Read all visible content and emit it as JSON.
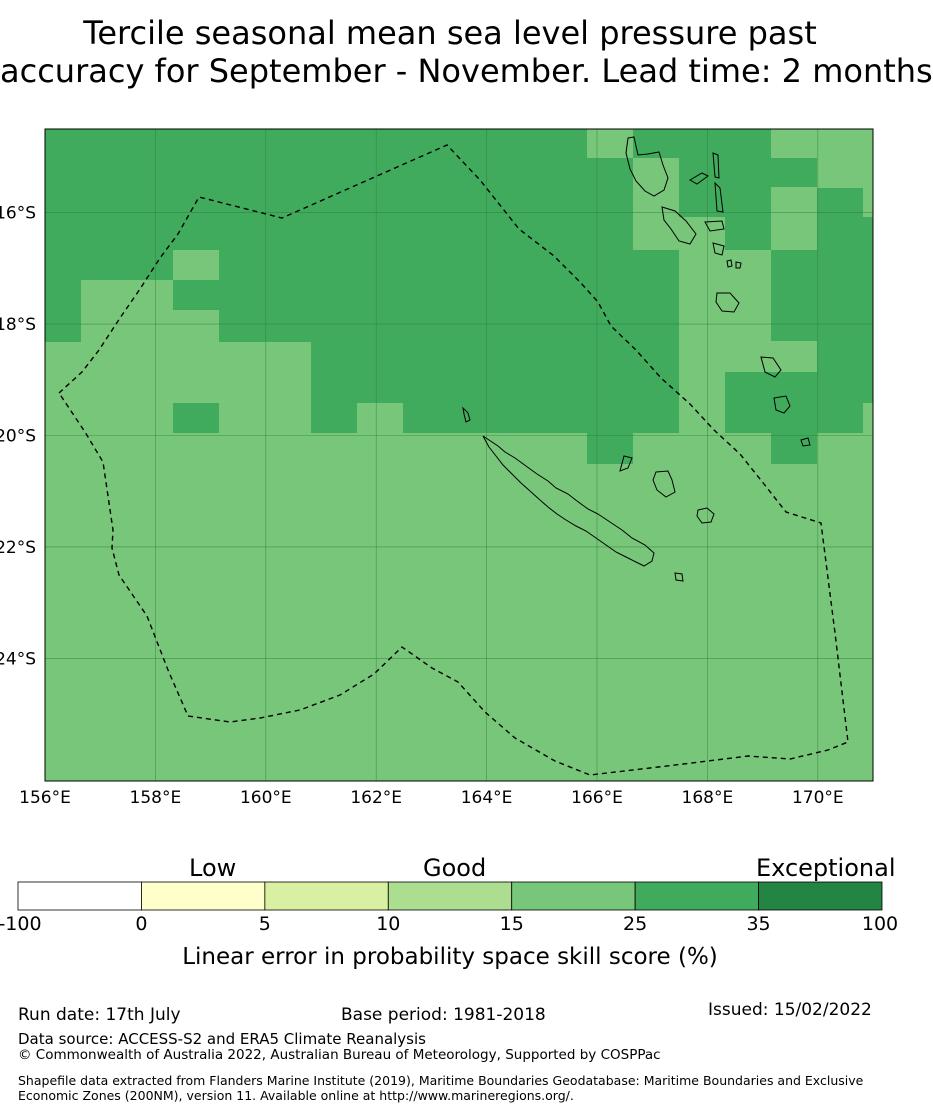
{
  "title": {
    "line1": "Tercile seasonal mean sea level pressure past",
    "line2": "accuracy for September - November. Lead time: 2 months"
  },
  "map": {
    "lon_range": [
      156,
      171
    ],
    "lat_range": [
      -26.2,
      -14.5
    ],
    "lon_ticks": [
      "156°E",
      "158°E",
      "160°E",
      "162°E",
      "164°E",
      "166°E",
      "168°E",
      "170°E"
    ],
    "lat_ticks": [
      "16°S",
      "18°S",
      "20°S",
      "22°S",
      "24°S"
    ],
    "colors": {
      "c35": "#41ab5d",
      "c25": "#78c679",
      "c100": "#238443",
      "coast": "#000000"
    }
  },
  "legend": {
    "low": "Low",
    "good": "Good",
    "exceptional": "Exceptional",
    "ticks": [
      "-100",
      "0",
      "5",
      "10",
      "15",
      "25",
      "35",
      "100"
    ],
    "colors": [
      "#ffffff",
      "#ffffcc",
      "#d9f0a3",
      "#addd8e",
      "#78c679",
      "#41ab5d",
      "#238443"
    ],
    "axis_label": "Linear error in probability space skill score (%)"
  },
  "footer": {
    "run_date": "Run date: 17th July",
    "base_period": "Base period: 1981-2018",
    "issued": "Issued: 15/02/2022",
    "data_source": "Data source: ACCESS-S2 and ERA5 Climate Reanalysis",
    "copyright": "© Commonwealth of Australia 2022, Australian Bureau of Meteorology, Supported by COSPPac",
    "shapefile": "Shapefile data extracted from Flanders Marine Institute (2019), Maritime Boundaries Geodatabase: Maritime Boundaries and Exclusive Economic Zones (200NM), version 11. Available online at http://www.marineregions.org/."
  }
}
